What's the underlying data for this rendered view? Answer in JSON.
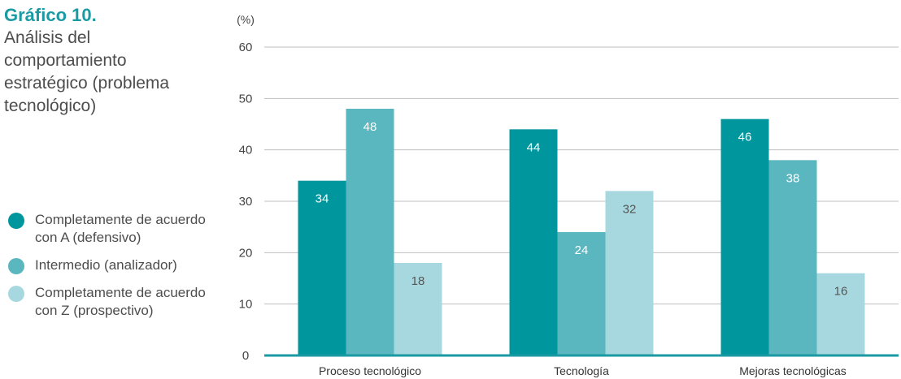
{
  "header": {
    "number": "Gráfico 10.",
    "title": "Análisis del comportamiento estratégico (problema tecnológico)"
  },
  "legend": {
    "items": [
      {
        "label": "Completamente de acuerdo con A (defensivo)",
        "color": "#00969e"
      },
      {
        "label": "Intermedio (analizador)",
        "color": "#5ab7bf"
      },
      {
        "label": "Completamente de acuerdo con Z (prospectivo)",
        "color": "#a7d8df"
      }
    ]
  },
  "chart_data": {
    "type": "bar",
    "ylabel": "(%)",
    "ylim": [
      0,
      60
    ],
    "yticks": [
      0,
      10,
      20,
      30,
      40,
      50,
      60
    ],
    "grid": true,
    "legend_position": "left",
    "categories": [
      "Proceso tecnológico",
      "Tecnología",
      "Mejoras tecnológicas"
    ],
    "series": [
      {
        "name": "Completamente de acuerdo con A (defensivo)",
        "color": "#00969e",
        "label_color": "#ffffff",
        "values": [
          34,
          44,
          46
        ]
      },
      {
        "name": "Intermedio (analizador)",
        "color": "#5ab7bf",
        "label_color": "#ffffff",
        "values": [
          48,
          24,
          38
        ]
      },
      {
        "name": "Completamente de acuerdo con Z (prospectivo)",
        "color": "#a7d8df",
        "label_color": "#555555",
        "values": [
          18,
          32,
          16
        ]
      }
    ]
  }
}
